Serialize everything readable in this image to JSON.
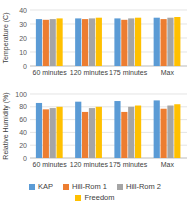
{
  "chart_data": [
    {
      "type": "bar",
      "y_label": "Temperature (C)",
      "categories": [
        "60 minutes",
        "120 minutes",
        "175 minutes",
        "Max"
      ],
      "series": [
        {
          "color": "#5b9bd5",
          "values": [
            33.5,
            34,
            34,
            34.5
          ]
        },
        {
          "color": "#ed7d31",
          "values": [
            33,
            33.5,
            33,
            33.5
          ]
        },
        {
          "color": "#a5a5a5",
          "values": [
            33.5,
            34,
            34,
            34.5
          ]
        },
        {
          "color": "#ffc000",
          "values": [
            34,
            34.5,
            34.5,
            35
          ]
        }
      ],
      "ylim": [
        0,
        40
      ],
      "yticks": [
        0,
        10,
        20,
        30,
        40
      ],
      "grid": true
    },
    {
      "type": "bar",
      "y_label": "Relative Humidity (%)",
      "categories": [
        "60 minutes",
        "120 minutes",
        "175 minutes",
        "Max"
      ],
      "series": [
        {
          "name": "KAP",
          "color": "#5b9bd5",
          "values": [
            86,
            88,
            89,
            90
          ]
        },
        {
          "name": "Hill-Rom 1",
          "color": "#ed7d31",
          "values": [
            76,
            72,
            72,
            77
          ]
        },
        {
          "name": "Hill-Rom 2",
          "color": "#a5a5a5",
          "values": [
            78,
            78,
            80,
            82
          ]
        },
        {
          "name": "Freedom",
          "color": "#ffc000",
          "values": [
            80,
            80,
            82,
            84
          ]
        }
      ],
      "ylim": [
        0,
        100
      ],
      "yticks": [
        0,
        20,
        40,
        60,
        80,
        100
      ],
      "grid": true,
      "legend": "bottom"
    }
  ]
}
